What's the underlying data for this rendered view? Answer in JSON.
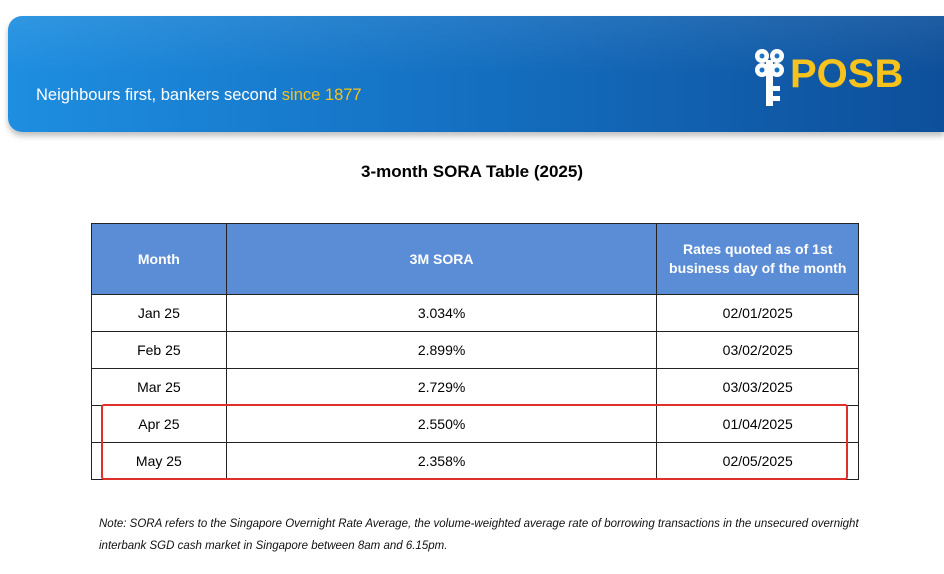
{
  "banner": {
    "tagline_main": "Neighbours first, bankers second ",
    "tagline_since": "since 1877",
    "logo_text": "POSB",
    "brand_color": "#1572c4",
    "accent_color": "#f7c21b",
    "logo_icon": "posb-key-icon"
  },
  "title": "3-month SORA Table (2025)",
  "table": {
    "headers": [
      "Month",
      "3M SORA",
      "Rates quoted as of 1st business day of the month"
    ],
    "rows": [
      [
        "Jan 25",
        "3.034%",
        "02/01/2025"
      ],
      [
        "Feb 25",
        "2.899%",
        "03/02/2025"
      ],
      [
        "Mar 25",
        "2.729%",
        "03/03/2025"
      ],
      [
        "Apr 25",
        "2.550%",
        "01/04/2025"
      ],
      [
        "May 25",
        "2.358%",
        "02/05/2025"
      ]
    ],
    "header_color": "#5b8dd6",
    "highlight_color": "#e0302a"
  },
  "note": "Note: SORA refers to the Singapore Overnight Rate Average, the volume-weighted average rate of borrowing transactions in the unsecured overnight interbank SGD cash market in Singapore between 8am and 6.15pm."
}
